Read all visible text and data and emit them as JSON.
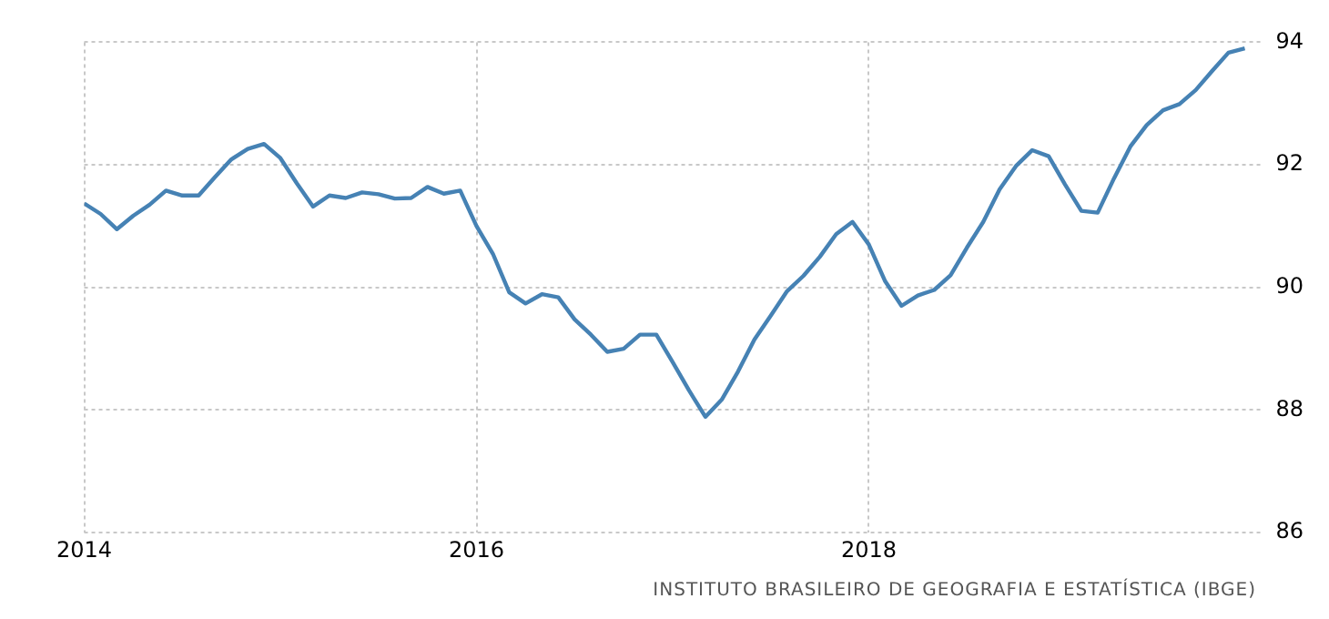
{
  "chart_data": {
    "type": "line",
    "x": [
      "2014-01",
      "2014-02",
      "2014-03",
      "2014-04",
      "2014-05",
      "2014-06",
      "2014-07",
      "2014-08",
      "2014-09",
      "2014-10",
      "2014-11",
      "2014-12",
      "2015-01",
      "2015-02",
      "2015-03",
      "2015-04",
      "2015-05",
      "2015-06",
      "2015-07",
      "2015-08",
      "2015-09",
      "2015-10",
      "2015-11",
      "2015-12",
      "2016-01",
      "2016-02",
      "2016-03",
      "2016-04",
      "2016-05",
      "2016-06",
      "2016-07",
      "2016-08",
      "2016-09",
      "2016-10",
      "2016-11",
      "2016-12",
      "2017-01",
      "2017-02",
      "2017-03",
      "2017-04",
      "2017-05",
      "2017-06",
      "2017-07",
      "2017-08",
      "2017-09",
      "2017-10",
      "2017-11",
      "2017-12",
      "2018-01",
      "2018-02",
      "2018-03",
      "2018-04",
      "2018-05",
      "2018-06",
      "2018-07",
      "2018-08",
      "2018-09",
      "2018-10",
      "2018-11",
      "2018-12",
      "2019-01",
      "2019-02",
      "2019-03",
      "2019-04",
      "2019-05",
      "2019-06",
      "2019-07",
      "2019-08",
      "2019-09",
      "2019-10",
      "2019-11",
      "2019-12"
    ],
    "series": [
      {
        "color": "#4682b4",
        "values": [
          91.37,
          91.2,
          90.95,
          91.17,
          91.35,
          91.58,
          91.5,
          91.5,
          91.8,
          92.09,
          92.26,
          92.34,
          92.11,
          91.7,
          91.32,
          91.5,
          91.46,
          91.55,
          91.52,
          91.45,
          91.46,
          91.64,
          91.53,
          91.58,
          91.0,
          90.55,
          89.92,
          89.74,
          89.89,
          89.84,
          89.48,
          89.23,
          88.95,
          89.0,
          89.23,
          89.23,
          88.78,
          88.32,
          87.89,
          88.17,
          88.63,
          89.15,
          89.54,
          89.94,
          90.19,
          90.5,
          90.87,
          91.07,
          90.7,
          90.1,
          89.7,
          89.87,
          89.96,
          90.2,
          90.65,
          91.07,
          91.6,
          91.98,
          92.24,
          92.14,
          91.68,
          91.25,
          91.22,
          91.78,
          92.3,
          92.65,
          92.89,
          92.99,
          93.22,
          93.53,
          93.83,
          93.9
        ]
      }
    ],
    "xlim": [
      "2014-01",
      "2020-01"
    ],
    "xticks": [
      "2014",
      "2016",
      "2018"
    ],
    "ylim": [
      86,
      94
    ],
    "yticks": [
      86,
      88,
      90,
      92,
      94
    ],
    "grid": true,
    "legend": false,
    "marker": "none",
    "line_style": "solid",
    "annotations": [
      "INSTITUTO BRASILEIRO DE GEOGRAFIA E ESTATÍSTICA (IBGE)"
    ]
  }
}
